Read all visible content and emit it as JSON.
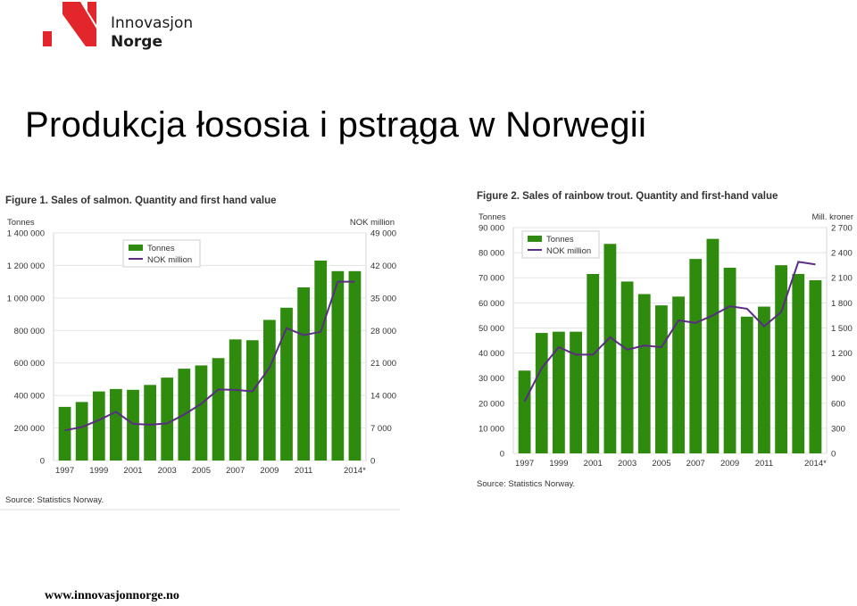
{
  "logo": {
    "line1": "Innovasjon",
    "line2": "Norge",
    "accent": "#e3262b"
  },
  "title": "Produkcja łososia i pstrąga w Norwegii",
  "footer": "www.innovasjonnorge.no",
  "colors": {
    "bar": "#2e8b0e",
    "line": "#5b2d82",
    "grid": "#e3e3e3"
  },
  "chart_data": [
    {
      "type": "bar",
      "title": "Figure 1. Sales of salmon. Quantity and first hand value",
      "y_left_label": "Tonnes",
      "y_right_label": "NOK million",
      "legend": [
        "Tonnes",
        "NOK million"
      ],
      "legend_position": "top-left",
      "source": "Source: Statistics Norway.",
      "x_labels": [
        "1997",
        "1999",
        "2001",
        "2003",
        "2005",
        "2007",
        "2009",
        "2011",
        "2014*"
      ],
      "x": [
        "1997",
        "1998",
        "1999",
        "2000",
        "2001",
        "2002",
        "2003",
        "2004",
        "2005",
        "2006",
        "2007",
        "2008",
        "2009",
        "2010",
        "2011",
        "2012",
        "2013",
        "2014*"
      ],
      "ylim_left": [
        0,
        1400000
      ],
      "yticks_left": [
        "0",
        "200 000",
        "400 000",
        "600 000",
        "800 000",
        "1 000 000",
        "1 200 000",
        "1 400 000"
      ],
      "ylim_right": [
        0,
        49000
      ],
      "yticks_right": [
        "0",
        "7 000",
        "14 000",
        "21 000",
        "28 000",
        "35 000",
        "42 000",
        "49 000"
      ],
      "series": [
        {
          "name": "Tonnes",
          "axis": "left",
          "values": [
            330000,
            360000,
            425000,
            440000,
            435000,
            465000,
            510000,
            565000,
            585000,
            630000,
            745000,
            740000,
            865000,
            940000,
            1065000,
            1230000,
            1165000,
            1165000
          ]
        },
        {
          "name": "NOK million",
          "axis": "right",
          "values": [
            6500,
            7200,
            8700,
            10500,
            7900,
            7700,
            8000,
            9900,
            12200,
            15300,
            15200,
            14900,
            20000,
            28500,
            27000,
            27700,
            38500,
            38500
          ]
        }
      ]
    },
    {
      "type": "bar",
      "title": "Figure 2. Sales of rainbow trout. Quantity and first-hand value",
      "y_left_label": "Tonnes",
      "y_right_label": "Mill. kroner",
      "legend": [
        "Tonnes",
        "NOK million"
      ],
      "legend_position": "top-left",
      "source": "Source: Statistics Norway.",
      "x_labels": [
        "1997",
        "1999",
        "2001",
        "2003",
        "2005",
        "2007",
        "2009",
        "2011",
        "2014*"
      ],
      "x": [
        "1997",
        "1998",
        "1999",
        "2000",
        "2001",
        "2002",
        "2003",
        "2004",
        "2005",
        "2006",
        "2007",
        "2008",
        "2009",
        "2010",
        "2011",
        "2012",
        "2013",
        "2014*"
      ],
      "ylim_left": [
        0,
        90000
      ],
      "yticks_left": [
        "0",
        "10 000",
        "20 000",
        "30 000",
        "40 000",
        "50 000",
        "60 000",
        "70 000",
        "80 000",
        "90 000"
      ],
      "ylim_right": [
        0,
        2700
      ],
      "yticks_right": [
        "0",
        "300",
        "600",
        "900",
        "1 200",
        "1 500",
        "1 800",
        "2 100",
        "2 400",
        "2 700"
      ],
      "series": [
        {
          "name": "Tonnes",
          "axis": "left",
          "values": [
            33000,
            48000,
            48500,
            48500,
            71500,
            83500,
            68500,
            63500,
            59000,
            62500,
            77500,
            85500,
            74000,
            54500,
            58500,
            75000,
            71500,
            69000
          ]
        },
        {
          "name": "NOK million",
          "axis": "right",
          "values": [
            620,
            1020,
            1270,
            1180,
            1180,
            1390,
            1240,
            1290,
            1270,
            1590,
            1560,
            1650,
            1760,
            1730,
            1520,
            1690,
            2290,
            2260
          ]
        }
      ]
    }
  ]
}
